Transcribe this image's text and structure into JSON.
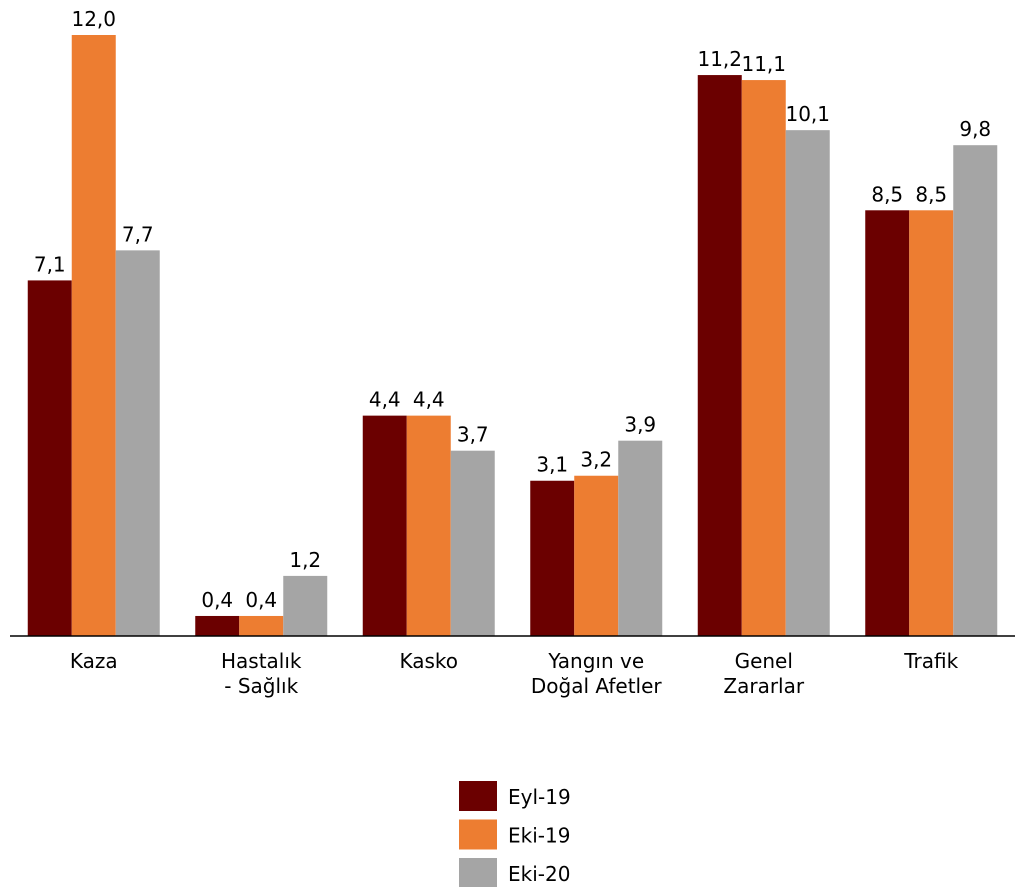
{
  "chart_data": {
    "type": "bar",
    "categories": [
      [
        "Kaza"
      ],
      [
        "Hastalık",
        "- Sağlık"
      ],
      [
        "Kasko"
      ],
      [
        "Yangın ve",
        "Doğal Afetler"
      ],
      [
        "Genel",
        "Zararlar"
      ],
      [
        "Trafik"
      ]
    ],
    "series": [
      {
        "name": "Eyl-19",
        "color": "#6b0000",
        "values": [
          7.1,
          0.4,
          4.4,
          3.1,
          11.2,
          8.5
        ],
        "value_labels": [
          "7,1",
          "0,4",
          "4,4",
          "3,1",
          "11,2",
          "8,5"
        ]
      },
      {
        "name": "Eki-19",
        "color": "#ed7d31",
        "values": [
          12.0,
          0.4,
          4.4,
          3.2,
          11.1,
          8.5
        ],
        "value_labels": [
          "12,0",
          "0,4",
          "4,4",
          "3,2",
          "11,1",
          "8,5"
        ]
      },
      {
        "name": "Eki-20",
        "color": "#a5a5a5",
        "values": [
          7.7,
          1.2,
          3.7,
          3.9,
          10.1,
          9.8
        ],
        "value_labels": [
          "7,7",
          "1,2",
          "3,7",
          "3,9",
          "10,1",
          "9,8"
        ]
      }
    ],
    "ylim": [
      0,
      12
    ],
    "legend": "bottom"
  }
}
